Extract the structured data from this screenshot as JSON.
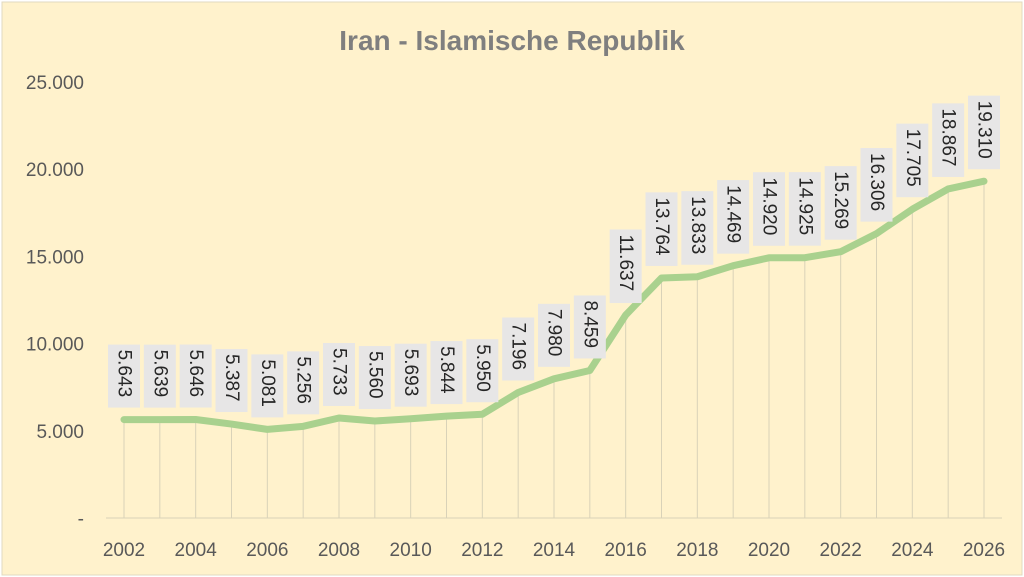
{
  "chart_data": {
    "type": "line",
    "title": "Iran - Islamische Republik",
    "xlabel": "",
    "ylabel": "",
    "x": [
      2002,
      2003,
      2004,
      2005,
      2006,
      2007,
      2008,
      2009,
      2010,
      2011,
      2012,
      2013,
      2014,
      2015,
      2016,
      2017,
      2018,
      2019,
      2020,
      2021,
      2022,
      2023,
      2024,
      2025,
      2026
    ],
    "series": [
      {
        "values": [
          5643,
          5639,
          5646,
          5387,
          5081,
          5256,
          5733,
          5560,
          5693,
          5844,
          5950,
          7196,
          7980,
          8459,
          11637,
          13764,
          13833,
          14469,
          14920,
          14925,
          15269,
          16306,
          17705,
          18867,
          19310
        ],
        "data_labels": [
          "5.643",
          "5.639",
          "5.646",
          "5.387",
          "5.081",
          "5.256",
          "5.733",
          "5.560",
          "5.693",
          "5.844",
          "5.950",
          "7.196",
          "7.980",
          "8.459",
          "11.637",
          "13.764",
          "13.833",
          "14.469",
          "14.920",
          "14.925",
          "15.269",
          "16.306",
          "17.705",
          "18.867",
          "19.310"
        ]
      }
    ],
    "ylim": [
      0,
      25000
    ],
    "y_ticks": [
      0,
      5000,
      10000,
      15000,
      20000,
      25000
    ],
    "y_tick_labels": [
      "-",
      "5.000",
      "10.000",
      "15.000",
      "20.000",
      "25.000"
    ],
    "x_tick_labels": [
      "2002",
      "2004",
      "2006",
      "2008",
      "2010",
      "2012",
      "2014",
      "2016",
      "2018",
      "2020",
      "2022",
      "2024",
      "2026"
    ],
    "grid": false,
    "drop_lines": true,
    "legend": "none",
    "colors": {
      "background": "#fff2cc",
      "line": "#a9d18e",
      "label_box": "#e7e6e6",
      "drop_line": "#d9d2b8",
      "title": "#7f7f7f",
      "axis_text": "#595959"
    }
  }
}
